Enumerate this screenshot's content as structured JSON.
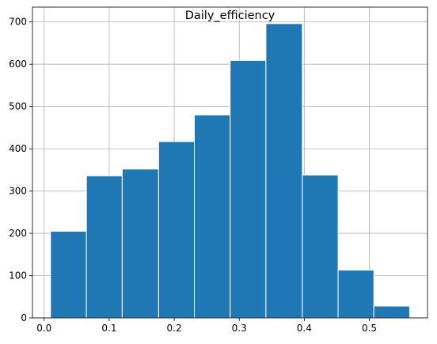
{
  "chart_data": {
    "type": "bar",
    "title": "Daily_efficiency",
    "xlabel": "",
    "ylabel": "",
    "bin_edges": [
      0.0098,
      0.065,
      0.12,
      0.176,
      0.231,
      0.286,
      0.341,
      0.397,
      0.452,
      0.507,
      0.562
    ],
    "values": [
      205,
      336,
      352,
      417,
      480,
      609,
      696,
      338,
      113,
      28
    ],
    "xlim": [
      -0.018,
      0.5895
    ],
    "ylim": [
      0,
      735
    ],
    "x_ticks": [
      0.0,
      0.1,
      0.2,
      0.3,
      0.4,
      0.5
    ],
    "x_tick_labels": [
      "0.0",
      "0.1",
      "0.2",
      "0.3",
      "0.4",
      "0.5"
    ],
    "y_ticks": [
      0,
      100,
      200,
      300,
      400,
      500,
      600,
      700
    ],
    "y_tick_labels": [
      "0",
      "100",
      "200",
      "300",
      "400",
      "500",
      "600",
      "700"
    ],
    "grid": true,
    "legend": "none",
    "colors": {
      "bar_fill": "#1f77b4",
      "bar_edge": "#ffffff",
      "grid": "#b0b0b0",
      "axes": "#000000"
    }
  }
}
